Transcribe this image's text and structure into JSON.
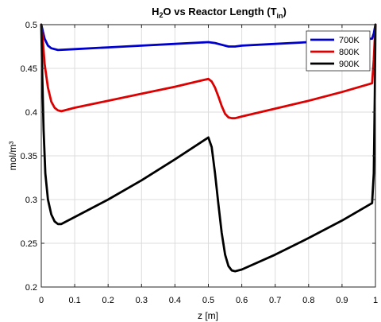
{
  "chart_data": {
    "type": "line",
    "title": {
      "main": "H",
      "sub2": "2",
      "mid": "O vs Reactor Length (T",
      "subin": "in",
      "end": ")"
    },
    "xlabel": "z [m]",
    "ylabel": "mol/m³",
    "xlim": [
      0,
      1
    ],
    "ylim": [
      0.2,
      0.5
    ],
    "xticks": [
      0,
      0.1,
      0.2,
      0.3,
      0.4,
      0.5,
      0.6,
      0.7,
      0.8,
      0.9,
      1
    ],
    "xtick_labels": [
      "0",
      "0.1",
      "0.2",
      "0.3",
      "0.4",
      "0.5",
      "0.6",
      "0.7",
      "0.8",
      "0.9",
      "1"
    ],
    "yticks": [
      0.2,
      0.25,
      0.3,
      0.35,
      0.4,
      0.45,
      0.5
    ],
    "ytick_labels": [
      "0.2",
      "0.25",
      "0.3",
      "0.35",
      "0.4",
      "0.45",
      "0.5"
    ],
    "grid": true,
    "legend_position": "top-right",
    "series": [
      {
        "name": "700K",
        "color": "#0000cc",
        "x": [
          0,
          0.005,
          0.01,
          0.02,
          0.03,
          0.05,
          0.1,
          0.2,
          0.3,
          0.4,
          0.5,
          0.52,
          0.54,
          0.56,
          0.58,
          0.6,
          0.7,
          0.8,
          0.9,
          0.99,
          0.995,
          1
        ],
        "y": [
          0.5,
          0.492,
          0.484,
          0.476,
          0.473,
          0.471,
          0.472,
          0.474,
          0.476,
          0.478,
          0.48,
          0.479,
          0.477,
          0.475,
          0.475,
          0.476,
          0.478,
          0.48,
          0.482,
          0.484,
          0.49,
          0.5
        ]
      },
      {
        "name": "800K",
        "color": "#dd0000",
        "x": [
          0,
          0.005,
          0.01,
          0.02,
          0.03,
          0.04,
          0.05,
          0.06,
          0.1,
          0.2,
          0.3,
          0.4,
          0.5,
          0.51,
          0.52,
          0.53,
          0.54,
          0.55,
          0.56,
          0.57,
          0.58,
          0.6,
          0.7,
          0.8,
          0.9,
          0.99,
          0.995,
          1
        ],
        "y": [
          0.5,
          0.48,
          0.455,
          0.428,
          0.412,
          0.405,
          0.402,
          0.401,
          0.405,
          0.413,
          0.421,
          0.429,
          0.438,
          0.435,
          0.428,
          0.418,
          0.407,
          0.398,
          0.394,
          0.393,
          0.393,
          0.395,
          0.404,
          0.413,
          0.423,
          0.433,
          0.46,
          0.5
        ]
      },
      {
        "name": "900K",
        "color": "#000000",
        "x": [
          0,
          0.003,
          0.007,
          0.012,
          0.02,
          0.03,
          0.04,
          0.05,
          0.06,
          0.1,
          0.2,
          0.3,
          0.4,
          0.5,
          0.51,
          0.52,
          0.53,
          0.54,
          0.55,
          0.56,
          0.57,
          0.58,
          0.6,
          0.7,
          0.8,
          0.9,
          0.99,
          0.995,
          0.998,
          1
        ],
        "y": [
          0.5,
          0.44,
          0.38,
          0.33,
          0.3,
          0.283,
          0.275,
          0.272,
          0.272,
          0.28,
          0.3,
          0.322,
          0.346,
          0.371,
          0.36,
          0.33,
          0.295,
          0.262,
          0.237,
          0.224,
          0.219,
          0.218,
          0.22,
          0.237,
          0.256,
          0.276,
          0.296,
          0.33,
          0.42,
          0.5
        ]
      }
    ]
  }
}
